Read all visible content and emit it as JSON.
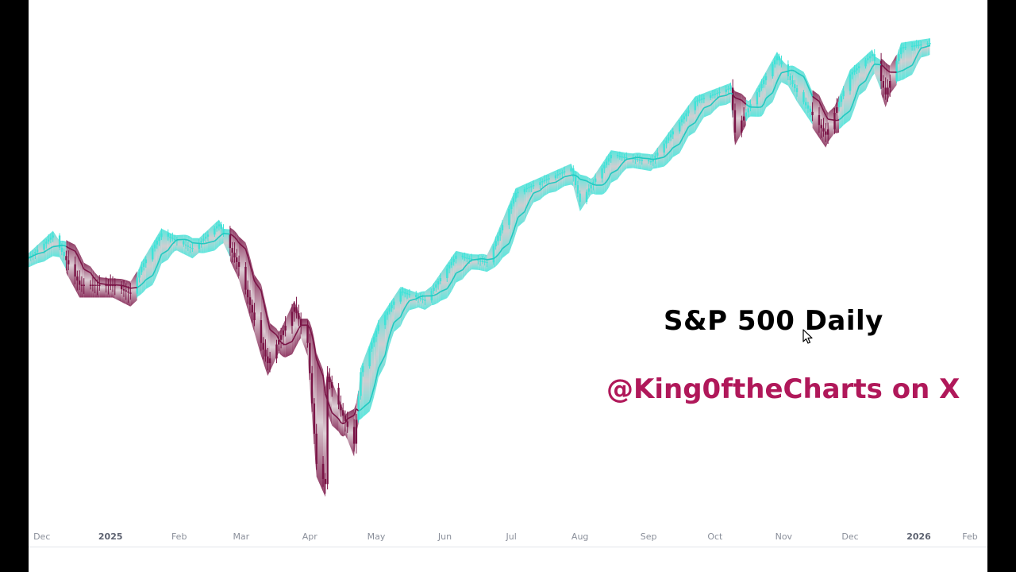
{
  "chart_data": {
    "type": "line",
    "title": "S&P 500 Daily",
    "subtitle": "",
    "xlabel": "",
    "ylabel": "",
    "x_ticks": [
      {
        "label": "Dec",
        "bold": false
      },
      {
        "label": "2025",
        "bold": true
      },
      {
        "label": "Feb",
        "bold": false
      },
      {
        "label": "Mar",
        "bold": false
      },
      {
        "label": "Apr",
        "bold": false
      },
      {
        "label": "May",
        "bold": false
      },
      {
        "label": "Jun",
        "bold": false
      },
      {
        "label": "Jul",
        "bold": false
      },
      {
        "label": "Aug",
        "bold": false
      },
      {
        "label": "Sep",
        "bold": false
      },
      {
        "label": "Oct",
        "bold": false
      },
      {
        "label": "Nov",
        "bold": false
      },
      {
        "label": "Dec",
        "bold": false
      },
      {
        "label": "2026",
        "bold": true
      },
      {
        "label": "Feb",
        "bold": false
      }
    ],
    "x_range": [
      "2024-11-25",
      "2026-02-01"
    ],
    "y_range": [
      4800,
      7000
    ],
    "grid": false,
    "series": [
      {
        "name": "",
        "color_up": "#3de3d8",
        "color_down": "#7a1346",
        "points": [
          {
            "date": "2024-11-25",
            "close": 5990,
            "trend": "up"
          },
          {
            "date": "2024-12-06",
            "close": 6090,
            "trend": "up"
          },
          {
            "date": "2024-12-18",
            "close": 5870,
            "trend": "down"
          },
          {
            "date": "2025-01-02",
            "close": 5870,
            "trend": "down"
          },
          {
            "date": "2025-01-10",
            "close": 5830,
            "trend": "down"
          },
          {
            "date": "2025-01-15",
            "close": 5950,
            "trend": "up"
          },
          {
            "date": "2025-01-24",
            "close": 6100,
            "trend": "up"
          },
          {
            "date": "2025-02-07",
            "close": 6030,
            "trend": "up"
          },
          {
            "date": "2025-02-19",
            "close": 6140,
            "trend": "up"
          },
          {
            "date": "2025-02-28",
            "close": 5950,
            "trend": "down"
          },
          {
            "date": "2025-03-10",
            "close": 5610,
            "trend": "down"
          },
          {
            "date": "2025-03-13",
            "close": 5520,
            "trend": "down"
          },
          {
            "date": "2025-03-25",
            "close": 5770,
            "trend": "down"
          },
          {
            "date": "2025-03-31",
            "close": 5610,
            "trend": "down"
          },
          {
            "date": "2025-04-04",
            "close": 5070,
            "trend": "down"
          },
          {
            "date": "2025-04-08",
            "close": 4980,
            "trend": "down"
          },
          {
            "date": "2025-04-09",
            "close": 5460,
            "trend": "down"
          },
          {
            "date": "2025-04-21",
            "close": 5160,
            "trend": "down"
          },
          {
            "date": "2025-04-24",
            "close": 5480,
            "trend": "up"
          },
          {
            "date": "2025-05-02",
            "close": 5690,
            "trend": "up"
          },
          {
            "date": "2025-05-12",
            "close": 5840,
            "trend": "up"
          },
          {
            "date": "2025-05-23",
            "close": 5800,
            "trend": "up"
          },
          {
            "date": "2025-06-06",
            "close": 6000,
            "trend": "up"
          },
          {
            "date": "2025-06-20",
            "close": 5970,
            "trend": "up"
          },
          {
            "date": "2025-07-03",
            "close": 6280,
            "trend": "up"
          },
          {
            "date": "2025-07-28",
            "close": 6390,
            "trend": "up"
          },
          {
            "date": "2025-08-01",
            "close": 6240,
            "trend": "up"
          },
          {
            "date": "2025-08-15",
            "close": 6450,
            "trend": "up"
          },
          {
            "date": "2025-09-02",
            "close": 6420,
            "trend": "up"
          },
          {
            "date": "2025-09-22",
            "close": 6690,
            "trend": "up"
          },
          {
            "date": "2025-10-08",
            "close": 6750,
            "trend": "up"
          },
          {
            "date": "2025-10-10",
            "close": 6550,
            "trend": "down"
          },
          {
            "date": "2025-10-20",
            "close": 6730,
            "trend": "up"
          },
          {
            "date": "2025-10-29",
            "close": 6890,
            "trend": "up"
          },
          {
            "date": "2025-11-07",
            "close": 6730,
            "trend": "up"
          },
          {
            "date": "2025-11-20",
            "close": 6540,
            "trend": "down"
          },
          {
            "date": "2025-12-01",
            "close": 6810,
            "trend": "up"
          },
          {
            "date": "2025-12-11",
            "close": 6900,
            "trend": "up"
          },
          {
            "date": "2025-12-17",
            "close": 6720,
            "trend": "down"
          },
          {
            "date": "2025-12-24",
            "close": 6930,
            "trend": "up"
          },
          {
            "date": "2026-01-06",
            "close": 6950,
            "trend": "up"
          }
        ]
      }
    ]
  },
  "overlay": {
    "title": "S&P 500 Daily",
    "handle": "@King0ftheCharts on X",
    "handle_color": "#b0185a"
  },
  "icons": [
    "mouse-cursor-icon"
  ]
}
